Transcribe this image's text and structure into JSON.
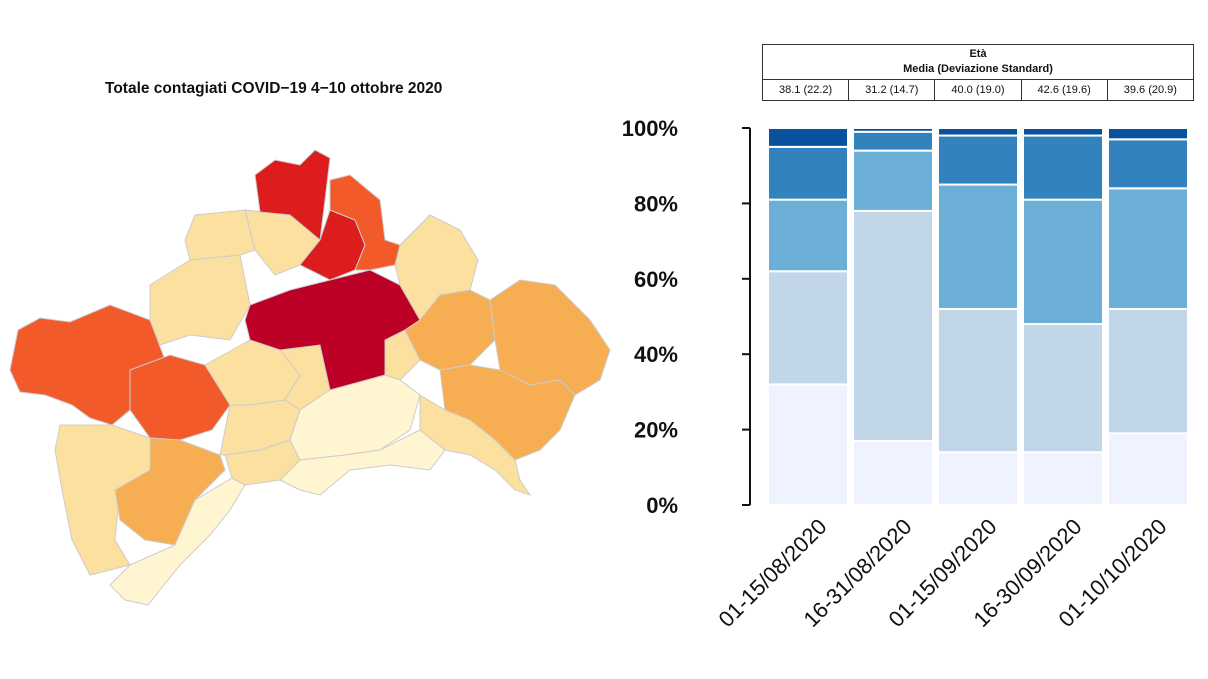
{
  "map": {
    "title": "Totale contagiati COVID−19 4−10 ottobre 2020",
    "palette": [
      "#fff5d0",
      "#fbe0a0",
      "#f7ae52",
      "#f25a2a",
      "#dd1d1d",
      "#bd0026"
    ],
    "border_color": "#cccccc"
  },
  "age_table": {
    "header_line1": "Età",
    "header_line2": "Media (Deviazione Standard)",
    "values": [
      "38.1 (22.2)",
      "31.2 (14.7)",
      "40.0 (19.0)",
      "42.6 (19.6)",
      "39.6 (20.9)"
    ]
  },
  "chart_data": {
    "type": "bar",
    "stacked": true,
    "categories": [
      "01-15/08/2020",
      "16-31/08/2020",
      "01-15/09/2020",
      "16-30/09/2020",
      "01-10/10/2020"
    ],
    "series": [
      {
        "values": [
          32,
          17,
          14,
          14,
          19
        ],
        "color": "#eff3ff"
      },
      {
        "values": [
          30,
          61,
          38,
          34,
          33
        ],
        "color": "#c1d6e9"
      },
      {
        "values": [
          19,
          16,
          33,
          33,
          32
        ],
        "color": "#6baed6"
      },
      {
        "values": [
          14,
          5,
          13,
          17,
          13
        ],
        "color": "#3182bd"
      },
      {
        "values": [
          5,
          1,
          2,
          2,
          3
        ],
        "color": "#08519c"
      }
    ],
    "y_ticks": [
      "0%",
      "20%",
      "40%",
      "60%",
      "80%",
      "100%"
    ],
    "ylim": [
      0,
      100
    ],
    "grid": false,
    "legend": "none"
  }
}
